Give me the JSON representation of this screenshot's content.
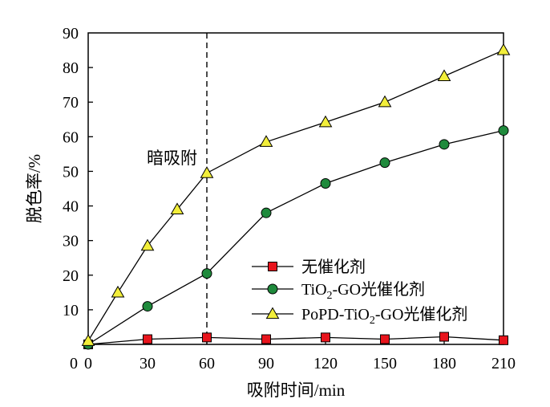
{
  "chart_data": {
    "type": "line",
    "xlabel": "吸附时间/min",
    "ylabel": "脱色率/%",
    "xlim": [
      0,
      210
    ],
    "ylim": [
      0,
      90
    ],
    "x_ticks": [
      0,
      30,
      60,
      90,
      120,
      150,
      180,
      210
    ],
    "y_ticks": [
      10,
      20,
      30,
      40,
      50,
      60,
      70,
      80,
      90
    ],
    "y_origin_label": "0",
    "grid": false,
    "legend_position": "lower-right",
    "annotation": {
      "text": "暗吸附",
      "x": 60
    },
    "series": [
      {
        "name": "无催化剂",
        "marker": "square",
        "color": "#e8141c",
        "x": [
          0,
          30,
          60,
          90,
          120,
          150,
          180,
          210
        ],
        "y": [
          0,
          1.5,
          2.0,
          1.5,
          2.0,
          1.5,
          2.2,
          1.2
        ]
      },
      {
        "name": "TiO2-GO光催化剂",
        "marker": "circle",
        "color": "#1f8a3c",
        "x": [
          0,
          30,
          60,
          90,
          120,
          150,
          180,
          210
        ],
        "y": [
          0,
          11.0,
          20.5,
          38.0,
          46.5,
          52.5,
          57.8,
          61.8
        ]
      },
      {
        "name": "PoPD-TiO2-GO光催化剂",
        "marker": "triangle",
        "color": "#f2ee3a",
        "x": [
          0,
          15,
          30,
          45,
          60,
          90,
          120,
          150,
          180,
          210
        ],
        "y": [
          1.0,
          15.0,
          28.5,
          39.0,
          49.5,
          58.5,
          64.2,
          70.0,
          77.5,
          85.0
        ]
      }
    ],
    "legend": {
      "items": [
        {
          "pre": "无催化剂",
          "sub": "",
          "post": ""
        },
        {
          "pre": "TiO",
          "sub": "2",
          "post": "-GO光催化剂"
        },
        {
          "pre": "PoPD-TiO",
          "sub": "2",
          "post": "-GO光催化剂"
        }
      ]
    }
  }
}
